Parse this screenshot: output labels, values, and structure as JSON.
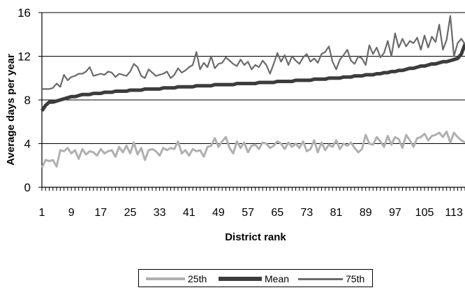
{
  "chart_data": {
    "type": "line",
    "xlabel": "District rank",
    "ylabel": "Average days per year",
    "ylim": [
      0,
      16
    ],
    "xlim": [
      1,
      116
    ],
    "y_ticks": [
      "0",
      "4",
      "8",
      "12",
      "16"
    ],
    "x_tick_labels": [
      "1",
      "9",
      "17",
      "25",
      "33",
      "41",
      "49",
      "57",
      "65",
      "73",
      "81",
      "89",
      "97",
      "105",
      "113"
    ],
    "x_tick_values": [
      1,
      9,
      17,
      25,
      33,
      41,
      49,
      57,
      65,
      73,
      81,
      89,
      97,
      105,
      113
    ],
    "grid": "horizontal",
    "legend_position": "bottom",
    "series": [
      {
        "name": "25th",
        "color": "#b0b0b0",
        "values": [
          1.8,
          2.5,
          2.4,
          2.5,
          1.9,
          3.4,
          3.3,
          3.6,
          3.1,
          3.4,
          2.6,
          3.5,
          3.0,
          3.3,
          3.2,
          2.9,
          3.5,
          3.1,
          3.3,
          3.4,
          2.8,
          3.7,
          3.2,
          3.8,
          3.1,
          4.1,
          3.0,
          3.6,
          2.5,
          3.4,
          3.5,
          3.3,
          2.9,
          3.6,
          3.4,
          3.6,
          3.5,
          4.2,
          3.1,
          3.4,
          2.9,
          3.5,
          3.3,
          3.4,
          2.8,
          3.7,
          3.8,
          4.5,
          3.7,
          4.2,
          4.6,
          3.6,
          3.1,
          4.2,
          3.6,
          4.1,
          3.2,
          3.8,
          3.9,
          3.5,
          4.1,
          4.0,
          3.6,
          3.8,
          4.2,
          4.0,
          3.5,
          4.1,
          3.7,
          4.0,
          3.6,
          4.2,
          3.3,
          3.5,
          4.3,
          3.2,
          4.1,
          3.4,
          3.9,
          3.7,
          4.3,
          3.5,
          4.0,
          3.8,
          4.1,
          3.6,
          3.2,
          3.5,
          4.8,
          4.0,
          3.9,
          4.6,
          4.2,
          3.7,
          4.7,
          3.9,
          4.6,
          4.4,
          3.6,
          4.8,
          4.3,
          3.7,
          4.5,
          4.6,
          4.9,
          4.3,
          4.7,
          4.8,
          5.0,
          4.6,
          5.1,
          4.1,
          5.0,
          4.6,
          4.3,
          4.1
        ]
      },
      {
        "name": "Mean",
        "color": "#3c3c3c",
        "values": [
          7.0,
          7.5,
          7.8,
          7.8,
          7.9,
          8.0,
          8.1,
          8.2,
          8.3,
          8.3,
          8.4,
          8.5,
          8.5,
          8.5,
          8.6,
          8.6,
          8.6,
          8.7,
          8.7,
          8.7,
          8.8,
          8.8,
          8.8,
          8.8,
          8.9,
          8.9,
          8.9,
          8.9,
          9.0,
          9.0,
          9.0,
          9.0,
          9.0,
          9.1,
          9.1,
          9.1,
          9.1,
          9.2,
          9.2,
          9.2,
          9.2,
          9.2,
          9.3,
          9.3,
          9.3,
          9.3,
          9.3,
          9.4,
          9.4,
          9.4,
          9.4,
          9.4,
          9.4,
          9.5,
          9.5,
          9.5,
          9.5,
          9.5,
          9.5,
          9.6,
          9.6,
          9.6,
          9.6,
          9.6,
          9.7,
          9.7,
          9.7,
          9.7,
          9.7,
          9.8,
          9.8,
          9.8,
          9.8,
          9.8,
          9.9,
          9.9,
          9.9,
          9.9,
          10.0,
          10.0,
          10.0,
          10.0,
          10.1,
          10.1,
          10.1,
          10.2,
          10.2,
          10.2,
          10.3,
          10.3,
          10.3,
          10.4,
          10.4,
          10.5,
          10.5,
          10.6,
          10.6,
          10.7,
          10.7,
          10.8,
          10.9,
          10.9,
          11.0,
          11.1,
          11.1,
          11.2,
          11.3,
          11.3,
          11.4,
          11.5,
          11.5,
          11.6,
          11.7,
          11.8,
          12.2,
          13.1
        ]
      },
      {
        "name": "75th",
        "color": "#6a6a6a",
        "values": [
          9.0,
          9.0,
          9.0,
          9.1,
          9.5,
          9.2,
          10.3,
          9.8,
          10.1,
          10.2,
          10.4,
          10.4,
          10.6,
          11.0,
          10.2,
          10.3,
          10.4,
          10.3,
          10.6,
          10.5,
          10.1,
          10.4,
          10.3,
          10.2,
          10.6,
          11.3,
          11.0,
          10.2,
          10.0,
          10.8,
          10.5,
          10.2,
          10.3,
          10.4,
          10.6,
          10.0,
          10.3,
          10.9,
          10.5,
          10.7,
          11.0,
          11.2,
          12.4,
          10.8,
          11.4,
          11.0,
          12.0,
          10.9,
          11.3,
          11.4,
          11.9,
          11.6,
          11.3,
          11.1,
          11.7,
          11.2,
          11.5,
          10.8,
          11.2,
          11.0,
          11.6,
          11.2,
          10.4,
          11.3,
          12.3,
          11.5,
          12.1,
          11.2,
          12.0,
          11.6,
          11.3,
          11.9,
          12.2,
          11.5,
          11.8,
          11.4,
          12.2,
          12.4,
          12.9,
          11.5,
          10.8,
          11.7,
          12.1,
          12.6,
          11.6,
          11.3,
          12.0,
          11.8,
          11.2,
          13.0,
          12.2,
          12.8,
          11.9,
          12.3,
          13.4,
          12.0,
          14.1,
          12.8,
          13.6,
          12.9,
          13.4,
          13.2,
          13.7,
          12.6,
          13.9,
          12.8,
          13.8,
          13.3,
          14.9,
          12.6,
          13.5,
          15.7,
          12.0,
          13.2,
          13.6,
          13.1
        ]
      }
    ]
  }
}
